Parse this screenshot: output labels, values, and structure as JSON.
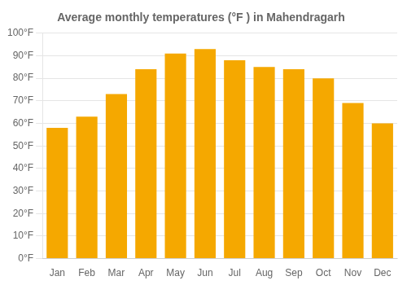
{
  "chart_data": {
    "type": "bar",
    "title": "Average monthly temperatures (°F ) in Mahendragarh",
    "categories": [
      "Jan",
      "Feb",
      "Mar",
      "Apr",
      "May",
      "Jun",
      "Jul",
      "Aug",
      "Sep",
      "Oct",
      "Nov",
      "Dec"
    ],
    "values": [
      58,
      63,
      73,
      84,
      91,
      93,
      88,
      85,
      84,
      80,
      69,
      60
    ],
    "color": "#F5A800",
    "ylim": [
      0,
      100
    ],
    "yticks": [
      {
        "value": 0,
        "label": "0°F"
      },
      {
        "value": 10,
        "label": "10°F"
      },
      {
        "value": 20,
        "label": "20°F"
      },
      {
        "value": 30,
        "label": "30°F"
      },
      {
        "value": 40,
        "label": "40°F"
      },
      {
        "value": 50,
        "label": "50°F"
      },
      {
        "value": 60,
        "label": "60°F"
      },
      {
        "value": 70,
        "label": "70°F"
      },
      {
        "value": 80,
        "label": "80°F"
      },
      {
        "value": 90,
        "label": "90°F"
      },
      {
        "value": 100,
        "label": "100°F"
      }
    ],
    "grid": true
  }
}
